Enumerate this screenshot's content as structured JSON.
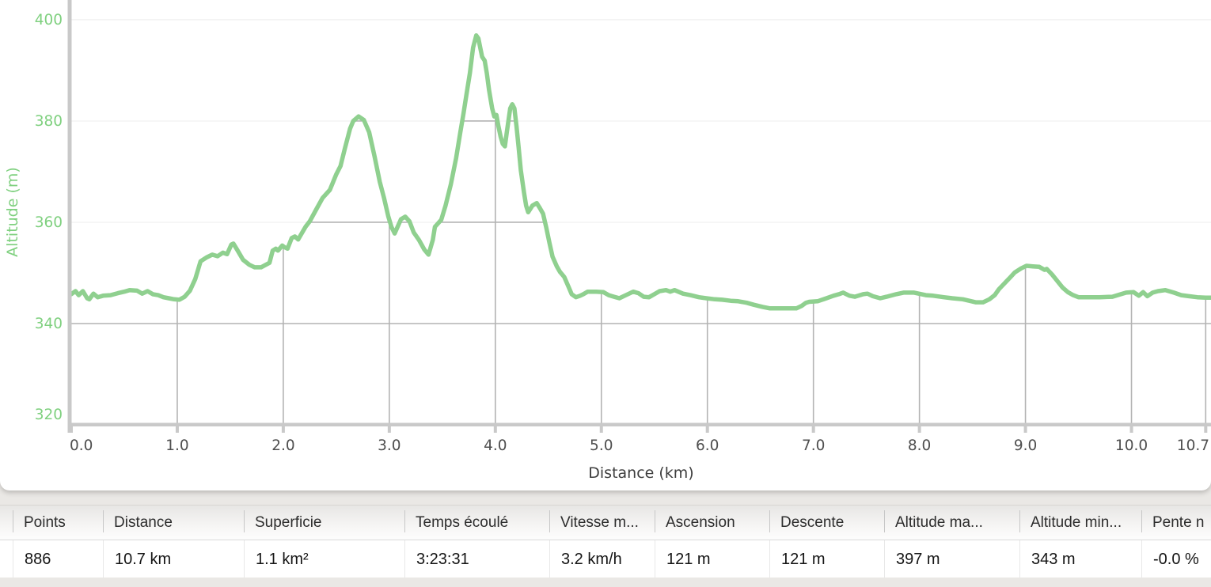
{
  "chart_data": {
    "type": "line",
    "title": "",
    "xlabel": "Distance (km)",
    "ylabel": "Altitude (m)",
    "xlim": [
      0,
      10.75
    ],
    "ylim": [
      320,
      403.9
    ],
    "grid": "partial-dark-under-curve",
    "legend": "none",
    "x_ticks": [
      {
        "v": 0,
        "label": "0.0"
      },
      {
        "v": 1,
        "label": "1.0"
      },
      {
        "v": 2,
        "label": "2.0"
      },
      {
        "v": 3,
        "label": "3.0"
      },
      {
        "v": 4,
        "label": "4.0"
      },
      {
        "v": 5,
        "label": "5.0"
      },
      {
        "v": 6,
        "label": "6.0"
      },
      {
        "v": 7,
        "label": "7.0"
      },
      {
        "v": 8,
        "label": "8.0"
      },
      {
        "v": 9,
        "label": "9.0"
      },
      {
        "v": 10,
        "label": "10.0"
      },
      {
        "v": 10.7,
        "label": "10.7"
      }
    ],
    "y_ticks": [
      {
        "v": 320,
        "label": "320"
      },
      {
        "v": 340,
        "label": "340"
      },
      {
        "v": 360,
        "label": "360"
      },
      {
        "v": 380,
        "label": "380"
      },
      {
        "v": 400,
        "label": "400"
      }
    ],
    "colors": {
      "line": "#8fd08f",
      "y_text": "#7fd07f",
      "x_text": "#4f4f4f",
      "grid_light": "#f1f1f1",
      "grid_dark": "#b3b3b3",
      "axis": "#c9c9c9"
    },
    "series": [
      {
        "name": "Altitude",
        "points": [
          [
            0,
            345.8
          ],
          [
            0.04,
            346.4
          ],
          [
            0.07,
            345.6
          ],
          [
            0.11,
            346.4
          ],
          [
            0.15,
            345.0
          ],
          [
            0.17,
            344.8
          ],
          [
            0.21,
            345.9
          ],
          [
            0.25,
            345.2
          ],
          [
            0.3,
            345.5
          ],
          [
            0.37,
            345.6
          ],
          [
            0.44,
            346.0
          ],
          [
            0.5,
            346.3
          ],
          [
            0.55,
            346.6
          ],
          [
            0.62,
            346.5
          ],
          [
            0.67,
            345.9
          ],
          [
            0.72,
            346.4
          ],
          [
            0.77,
            345.8
          ],
          [
            0.82,
            345.6
          ],
          [
            0.87,
            345.2
          ],
          [
            0.92,
            345.0
          ],
          [
            0.97,
            344.8
          ],
          [
            1.02,
            344.7
          ],
          [
            1.07,
            345.3
          ],
          [
            1.12,
            346.5
          ],
          [
            1.17,
            348.8
          ],
          [
            1.22,
            352.3
          ],
          [
            1.28,
            353.1
          ],
          [
            1.33,
            353.6
          ],
          [
            1.38,
            353.3
          ],
          [
            1.43,
            354.0
          ],
          [
            1.47,
            353.7
          ],
          [
            1.51,
            355.6
          ],
          [
            1.53,
            355.8
          ],
          [
            1.57,
            354.4
          ],
          [
            1.62,
            352.6
          ],
          [
            1.68,
            351.6
          ],
          [
            1.73,
            351.1
          ],
          [
            1.79,
            351.1
          ],
          [
            1.87,
            352.0
          ],
          [
            1.9,
            354.4
          ],
          [
            1.93,
            354.8
          ],
          [
            1.95,
            354.4
          ],
          [
            1.99,
            355.4
          ],
          [
            2.01,
            355.1
          ],
          [
            2.04,
            354.8
          ],
          [
            2.08,
            356.9
          ],
          [
            2.11,
            357.2
          ],
          [
            2.14,
            356.6
          ],
          [
            2.21,
            359.1
          ],
          [
            2.25,
            360.2
          ],
          [
            2.31,
            362.5
          ],
          [
            2.37,
            364.8
          ],
          [
            2.44,
            366.4
          ],
          [
            2.5,
            369.5
          ],
          [
            2.54,
            371.1
          ],
          [
            2.58,
            374.5
          ],
          [
            2.63,
            378.5
          ],
          [
            2.66,
            380.0
          ],
          [
            2.71,
            380.9
          ],
          [
            2.76,
            380.2
          ],
          [
            2.81,
            377.8
          ],
          [
            2.86,
            373.1
          ],
          [
            2.91,
            368.0
          ],
          [
            2.95,
            364.8
          ],
          [
            2.99,
            361.2
          ],
          [
            3.02,
            359.1
          ],
          [
            3.05,
            357.8
          ],
          [
            3.11,
            360.6
          ],
          [
            3.15,
            361.1
          ],
          [
            3.19,
            360.2
          ],
          [
            3.23,
            358.0
          ],
          [
            3.28,
            356.5
          ],
          [
            3.33,
            354.6
          ],
          [
            3.37,
            353.6
          ],
          [
            3.41,
            356.5
          ],
          [
            3.43,
            359.1
          ],
          [
            3.46,
            359.8
          ],
          [
            3.49,
            360.5
          ],
          [
            3.53,
            363.3
          ],
          [
            3.58,
            367.5
          ],
          [
            3.63,
            372.7
          ],
          [
            3.67,
            377.8
          ],
          [
            3.7,
            381.5
          ],
          [
            3.73,
            385.5
          ],
          [
            3.76,
            389.5
          ],
          [
            3.79,
            394.5
          ],
          [
            3.82,
            396.9
          ],
          [
            3.84,
            396.3
          ],
          [
            3.86,
            394.2
          ],
          [
            3.875,
            392.7
          ],
          [
            3.9,
            391.9
          ],
          [
            3.92,
            389.4
          ],
          [
            3.94,
            386.2
          ],
          [
            3.97,
            382.5
          ],
          [
            3.99,
            380.9
          ],
          [
            4.01,
            381.2
          ],
          [
            4.03,
            378.9
          ],
          [
            4.05,
            376.9
          ],
          [
            4.07,
            375.5
          ],
          [
            4.09,
            375.0
          ],
          [
            4.11,
            378.0
          ],
          [
            4.14,
            382.5
          ],
          [
            4.16,
            383.3
          ],
          [
            4.18,
            382.5
          ],
          [
            4.2,
            378.9
          ],
          [
            4.22,
            374.7
          ],
          [
            4.24,
            370.3
          ],
          [
            4.27,
            365.9
          ],
          [
            4.29,
            363.3
          ],
          [
            4.31,
            362.0
          ],
          [
            4.35,
            363.3
          ],
          [
            4.39,
            363.8
          ],
          [
            4.42,
            362.8
          ],
          [
            4.45,
            361.7
          ],
          [
            4.48,
            359.0
          ],
          [
            4.51,
            356.0
          ],
          [
            4.54,
            353.2
          ],
          [
            4.58,
            351.3
          ],
          [
            4.61,
            350.2
          ],
          [
            4.65,
            349.2
          ],
          [
            4.69,
            347.3
          ],
          [
            4.72,
            345.8
          ],
          [
            4.76,
            345.2
          ],
          [
            4.8,
            345.5
          ],
          [
            4.83,
            345.8
          ],
          [
            4.87,
            346.3
          ],
          [
            4.95,
            346.3
          ],
          [
            5.02,
            346.2
          ],
          [
            5.07,
            345.6
          ],
          [
            5.12,
            345.3
          ],
          [
            5.17,
            345.0
          ],
          [
            5.22,
            345.5
          ],
          [
            5.3,
            346.3
          ],
          [
            5.35,
            346.0
          ],
          [
            5.4,
            345.3
          ],
          [
            5.45,
            345.2
          ],
          [
            5.5,
            345.8
          ],
          [
            5.55,
            346.4
          ],
          [
            5.61,
            346.6
          ],
          [
            5.65,
            346.3
          ],
          [
            5.69,
            346.6
          ],
          [
            5.77,
            345.9
          ],
          [
            5.84,
            345.6
          ],
          [
            5.92,
            345.2
          ],
          [
            5.99,
            345.0
          ],
          [
            6.07,
            344.8
          ],
          [
            6.14,
            344.7
          ],
          [
            6.22,
            344.5
          ],
          [
            6.29,
            344.4
          ],
          [
            6.37,
            344.1
          ],
          [
            6.44,
            343.7
          ],
          [
            6.52,
            343.3
          ],
          [
            6.59,
            343.0
          ],
          [
            6.72,
            343.0
          ],
          [
            6.84,
            343.0
          ],
          [
            6.89,
            343.5
          ],
          [
            6.93,
            344.1
          ],
          [
            6.96,
            344.3
          ],
          [
            7.04,
            344.4
          ],
          [
            7.11,
            344.9
          ],
          [
            7.19,
            345.5
          ],
          [
            7.24,
            345.8
          ],
          [
            7.28,
            346.1
          ],
          [
            7.34,
            345.5
          ],
          [
            7.39,
            345.3
          ],
          [
            7.47,
            345.8
          ],
          [
            7.51,
            345.9
          ],
          [
            7.56,
            345.4
          ],
          [
            7.63,
            345.0
          ],
          [
            7.69,
            345.3
          ],
          [
            7.78,
            345.8
          ],
          [
            7.85,
            346.1
          ],
          [
            7.95,
            346.1
          ],
          [
            8.06,
            345.6
          ],
          [
            8.13,
            345.5
          ],
          [
            8.23,
            345.2
          ],
          [
            8.31,
            345.0
          ],
          [
            8.41,
            344.8
          ],
          [
            8.49,
            344.4
          ],
          [
            8.53,
            344.2
          ],
          [
            8.6,
            344.2
          ],
          [
            8.66,
            344.8
          ],
          [
            8.71,
            345.6
          ],
          [
            8.75,
            346.8
          ],
          [
            8.81,
            348.1
          ],
          [
            8.86,
            349.2
          ],
          [
            8.9,
            350.1
          ],
          [
            8.96,
            350.9
          ],
          [
            9.01,
            351.4
          ],
          [
            9.07,
            351.3
          ],
          [
            9.13,
            351.2
          ],
          [
            9.18,
            350.6
          ],
          [
            9.2,
            350.8
          ],
          [
            9.25,
            349.7
          ],
          [
            9.3,
            348.4
          ],
          [
            9.35,
            347.1
          ],
          [
            9.4,
            346.2
          ],
          [
            9.45,
            345.6
          ],
          [
            9.5,
            345.2
          ],
          [
            9.6,
            345.2
          ],
          [
            9.7,
            345.2
          ],
          [
            9.82,
            345.3
          ],
          [
            9.9,
            345.8
          ],
          [
            9.95,
            346.1
          ],
          [
            10.02,
            346.2
          ],
          [
            10.07,
            345.5
          ],
          [
            10.11,
            346.2
          ],
          [
            10.15,
            345.4
          ],
          [
            10.2,
            346.1
          ],
          [
            10.25,
            346.4
          ],
          [
            10.32,
            346.6
          ],
          [
            10.4,
            346.1
          ],
          [
            10.47,
            345.6
          ],
          [
            10.54,
            345.4
          ],
          [
            10.62,
            345.2
          ],
          [
            10.7,
            345.1
          ],
          [
            10.76,
            345.1
          ]
        ]
      }
    ]
  },
  "table": {
    "columns": [
      {
        "header": "Points",
        "value": "886"
      },
      {
        "header": "Distance",
        "value": "10.7 km"
      },
      {
        "header": "Superficie",
        "value": "1.1 km²"
      },
      {
        "header": "Temps écoulé",
        "value": "3:23:31"
      },
      {
        "header": "Vitesse m...",
        "value": "3.2 km/h"
      },
      {
        "header": "Ascension",
        "value": "121 m"
      },
      {
        "header": "Descente",
        "value": "121 m"
      },
      {
        "header": "Altitude ma...",
        "value": "397 m"
      },
      {
        "header": "Altitude min...",
        "value": "343 m"
      },
      {
        "header": "Pente n",
        "value": "-0.0 %"
      }
    ]
  }
}
